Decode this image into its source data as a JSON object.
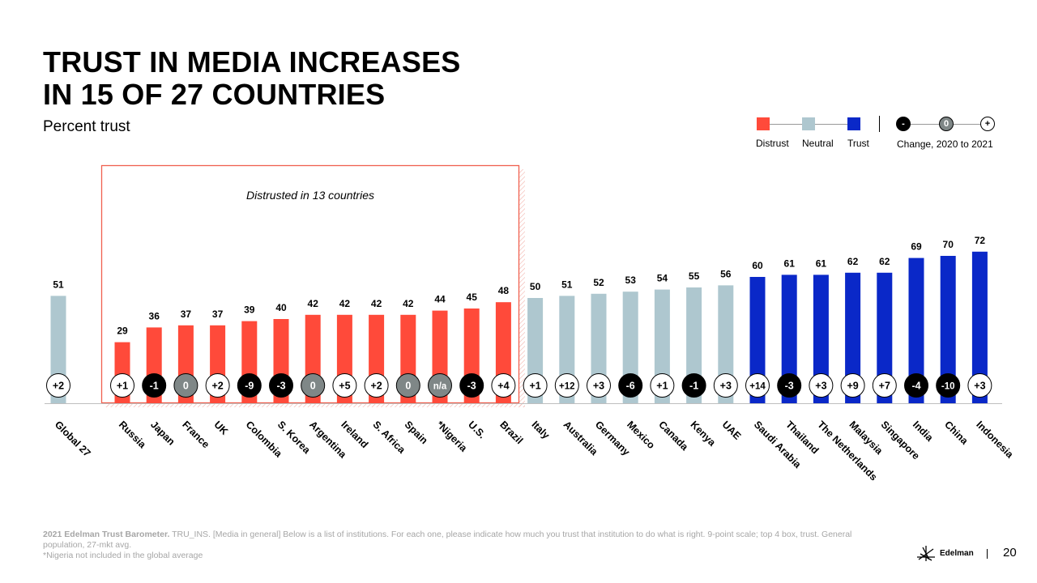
{
  "title_line1": "TRUST IN MEDIA INCREASES",
  "title_line2": "IN 15 OF 27 COUNTRIES",
  "subtitle": "Percent trust",
  "legend": {
    "distrust": "Distrust",
    "neutral": "Neutral",
    "trust": "Trust",
    "change_label": "Change, 2020 to 2021",
    "neg_symbol": "-",
    "zero_symbol": "0",
    "pos_symbol": "+"
  },
  "colors": {
    "distrust": "#ff4a3a",
    "neutral": "#aec7cf",
    "trust": "#0a28c8",
    "neg": "#000000",
    "zero": "#7f8787",
    "pos": "#ffffff",
    "box": "#f0604f"
  },
  "box_label": "Distrusted in 13 countries",
  "chart_data": {
    "type": "bar",
    "title": "TRUST IN MEDIA INCREASES IN 15 OF 27 COUNTRIES",
    "ylabel": "Percent trust",
    "ylim": [
      0,
      100
    ],
    "categories": [
      "Global 27",
      "Russia",
      "Japan",
      "France",
      "UK",
      "Colombia",
      "S. Korea",
      "Argentina",
      "Ireland",
      "S. Africa",
      "Spain",
      "*Nigeria",
      "U.S.",
      "Brazil",
      "Italy",
      "Australia",
      "Germany",
      "Mexico",
      "Canada",
      "Kenya",
      "UAE",
      "Saudi Arabia",
      "Thailand",
      "The Netherlands",
      "Malaysia",
      "Singapore",
      "India",
      "China",
      "Indonesia"
    ],
    "values": [
      51,
      29,
      36,
      37,
      37,
      39,
      40,
      42,
      42,
      42,
      42,
      44,
      45,
      48,
      50,
      51,
      52,
      53,
      54,
      55,
      56,
      60,
      61,
      61,
      62,
      62,
      69,
      70,
      72
    ],
    "labels": [
      "51",
      "29",
      "36",
      "37",
      "37",
      "39",
      "40",
      "42",
      "42",
      "42",
      "42",
      "44",
      "45",
      "48",
      "50",
      "51",
      "52",
      "53",
      "54",
      "55",
      "56",
      "60",
      "61",
      "61",
      "62",
      "62",
      "69",
      "70",
      "72"
    ],
    "levels": [
      "neutral",
      "distrust",
      "distrust",
      "distrust",
      "distrust",
      "distrust",
      "distrust",
      "distrust",
      "distrust",
      "distrust",
      "distrust",
      "distrust",
      "distrust",
      "distrust",
      "neutral",
      "neutral",
      "neutral",
      "neutral",
      "neutral",
      "neutral",
      "neutral",
      "trust",
      "trust",
      "trust",
      "trust",
      "trust",
      "trust",
      "trust",
      "trust"
    ],
    "changes": [
      "+2",
      "+1",
      "-1",
      "0",
      "+2",
      "-9",
      "-3",
      "0",
      "+5",
      "+2",
      "0",
      "n/a",
      "-3",
      "+4",
      "+1",
      "+12",
      "+3",
      "-6",
      "+1",
      "-1",
      "+3",
      "+14",
      "-3",
      "+3",
      "+9",
      "+7",
      "-4",
      "-10",
      "+3"
    ]
  },
  "footnote": {
    "source_bold": "2021 Edelman Trust Barometer.",
    "source_text": " TRU_INS. [Media in general] Below is a list of institutions. For each one, please indicate how much you trust that institution to do what is right. 9-point scale; top 4 box, trust. General population, 27-mkt avg.",
    "note": "*Nigeria not included in the global average"
  },
  "logo_text": "Edelman",
  "page_number": "20"
}
